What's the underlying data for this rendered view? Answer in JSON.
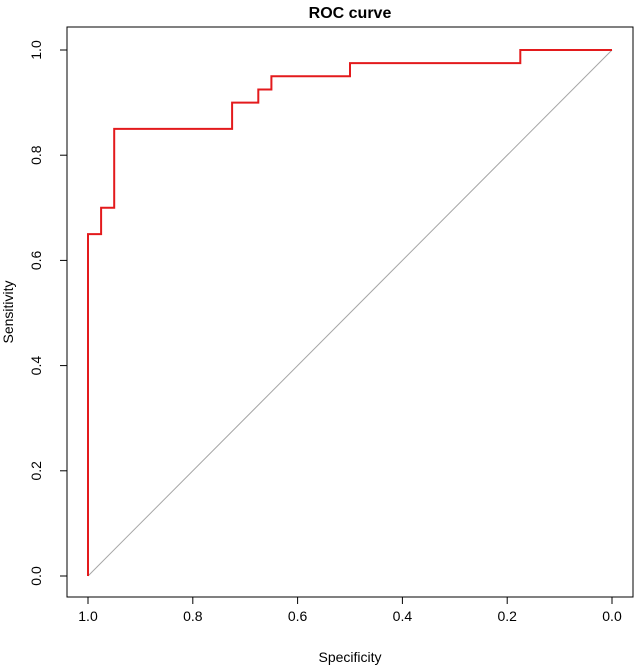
{
  "chart_data": {
    "type": "line",
    "title": "ROC curve",
    "xlabel": "Specificity",
    "ylabel": "Sensitivity",
    "xlim": [
      1.0,
      0.0
    ],
    "ylim": [
      0.0,
      1.0
    ],
    "x_reversed": true,
    "grid": false,
    "legend": "none",
    "x_ticks": [
      1.0,
      0.8,
      0.6,
      0.4,
      0.2,
      0.0
    ],
    "x_tick_labels": [
      "1.0",
      "0.8",
      "0.6",
      "0.4",
      "0.2",
      "0.0"
    ],
    "y_ticks": [
      0.0,
      0.2,
      0.4,
      0.6,
      0.8,
      1.0
    ],
    "y_tick_labels": [
      "0.0",
      "0.2",
      "0.4",
      "0.6",
      "0.8",
      "1.0"
    ],
    "series": [
      {
        "style": "step",
        "color": "#e31a1c",
        "points": [
          {
            "specificity": 1.0,
            "sensitivity": 0.0
          },
          {
            "specificity": 1.0,
            "sensitivity": 0.65
          },
          {
            "specificity": 0.975,
            "sensitivity": 0.65
          },
          {
            "specificity": 0.975,
            "sensitivity": 0.7
          },
          {
            "specificity": 0.95,
            "sensitivity": 0.7
          },
          {
            "specificity": 0.95,
            "sensitivity": 0.85
          },
          {
            "specificity": 0.725,
            "sensitivity": 0.85
          },
          {
            "specificity": 0.725,
            "sensitivity": 0.9
          },
          {
            "specificity": 0.675,
            "sensitivity": 0.9
          },
          {
            "specificity": 0.675,
            "sensitivity": 0.925
          },
          {
            "specificity": 0.65,
            "sensitivity": 0.925
          },
          {
            "specificity": 0.65,
            "sensitivity": 0.95
          },
          {
            "specificity": 0.5,
            "sensitivity": 0.95
          },
          {
            "specificity": 0.5,
            "sensitivity": 0.975
          },
          {
            "specificity": 0.175,
            "sensitivity": 0.975
          },
          {
            "specificity": 0.175,
            "sensitivity": 1.0
          },
          {
            "specificity": 0.0,
            "sensitivity": 1.0
          }
        ]
      }
    ],
    "reference_line": {
      "color": "#a6a6a6",
      "from": {
        "specificity": 1.0,
        "sensitivity": 0.0
      },
      "to": {
        "specificity": 0.0,
        "sensitivity": 1.0
      }
    },
    "colors": {
      "roc_curve": "#e31a1c",
      "reference": "#a6a6a6",
      "axis": "#000000",
      "background": "#ffffff"
    }
  }
}
